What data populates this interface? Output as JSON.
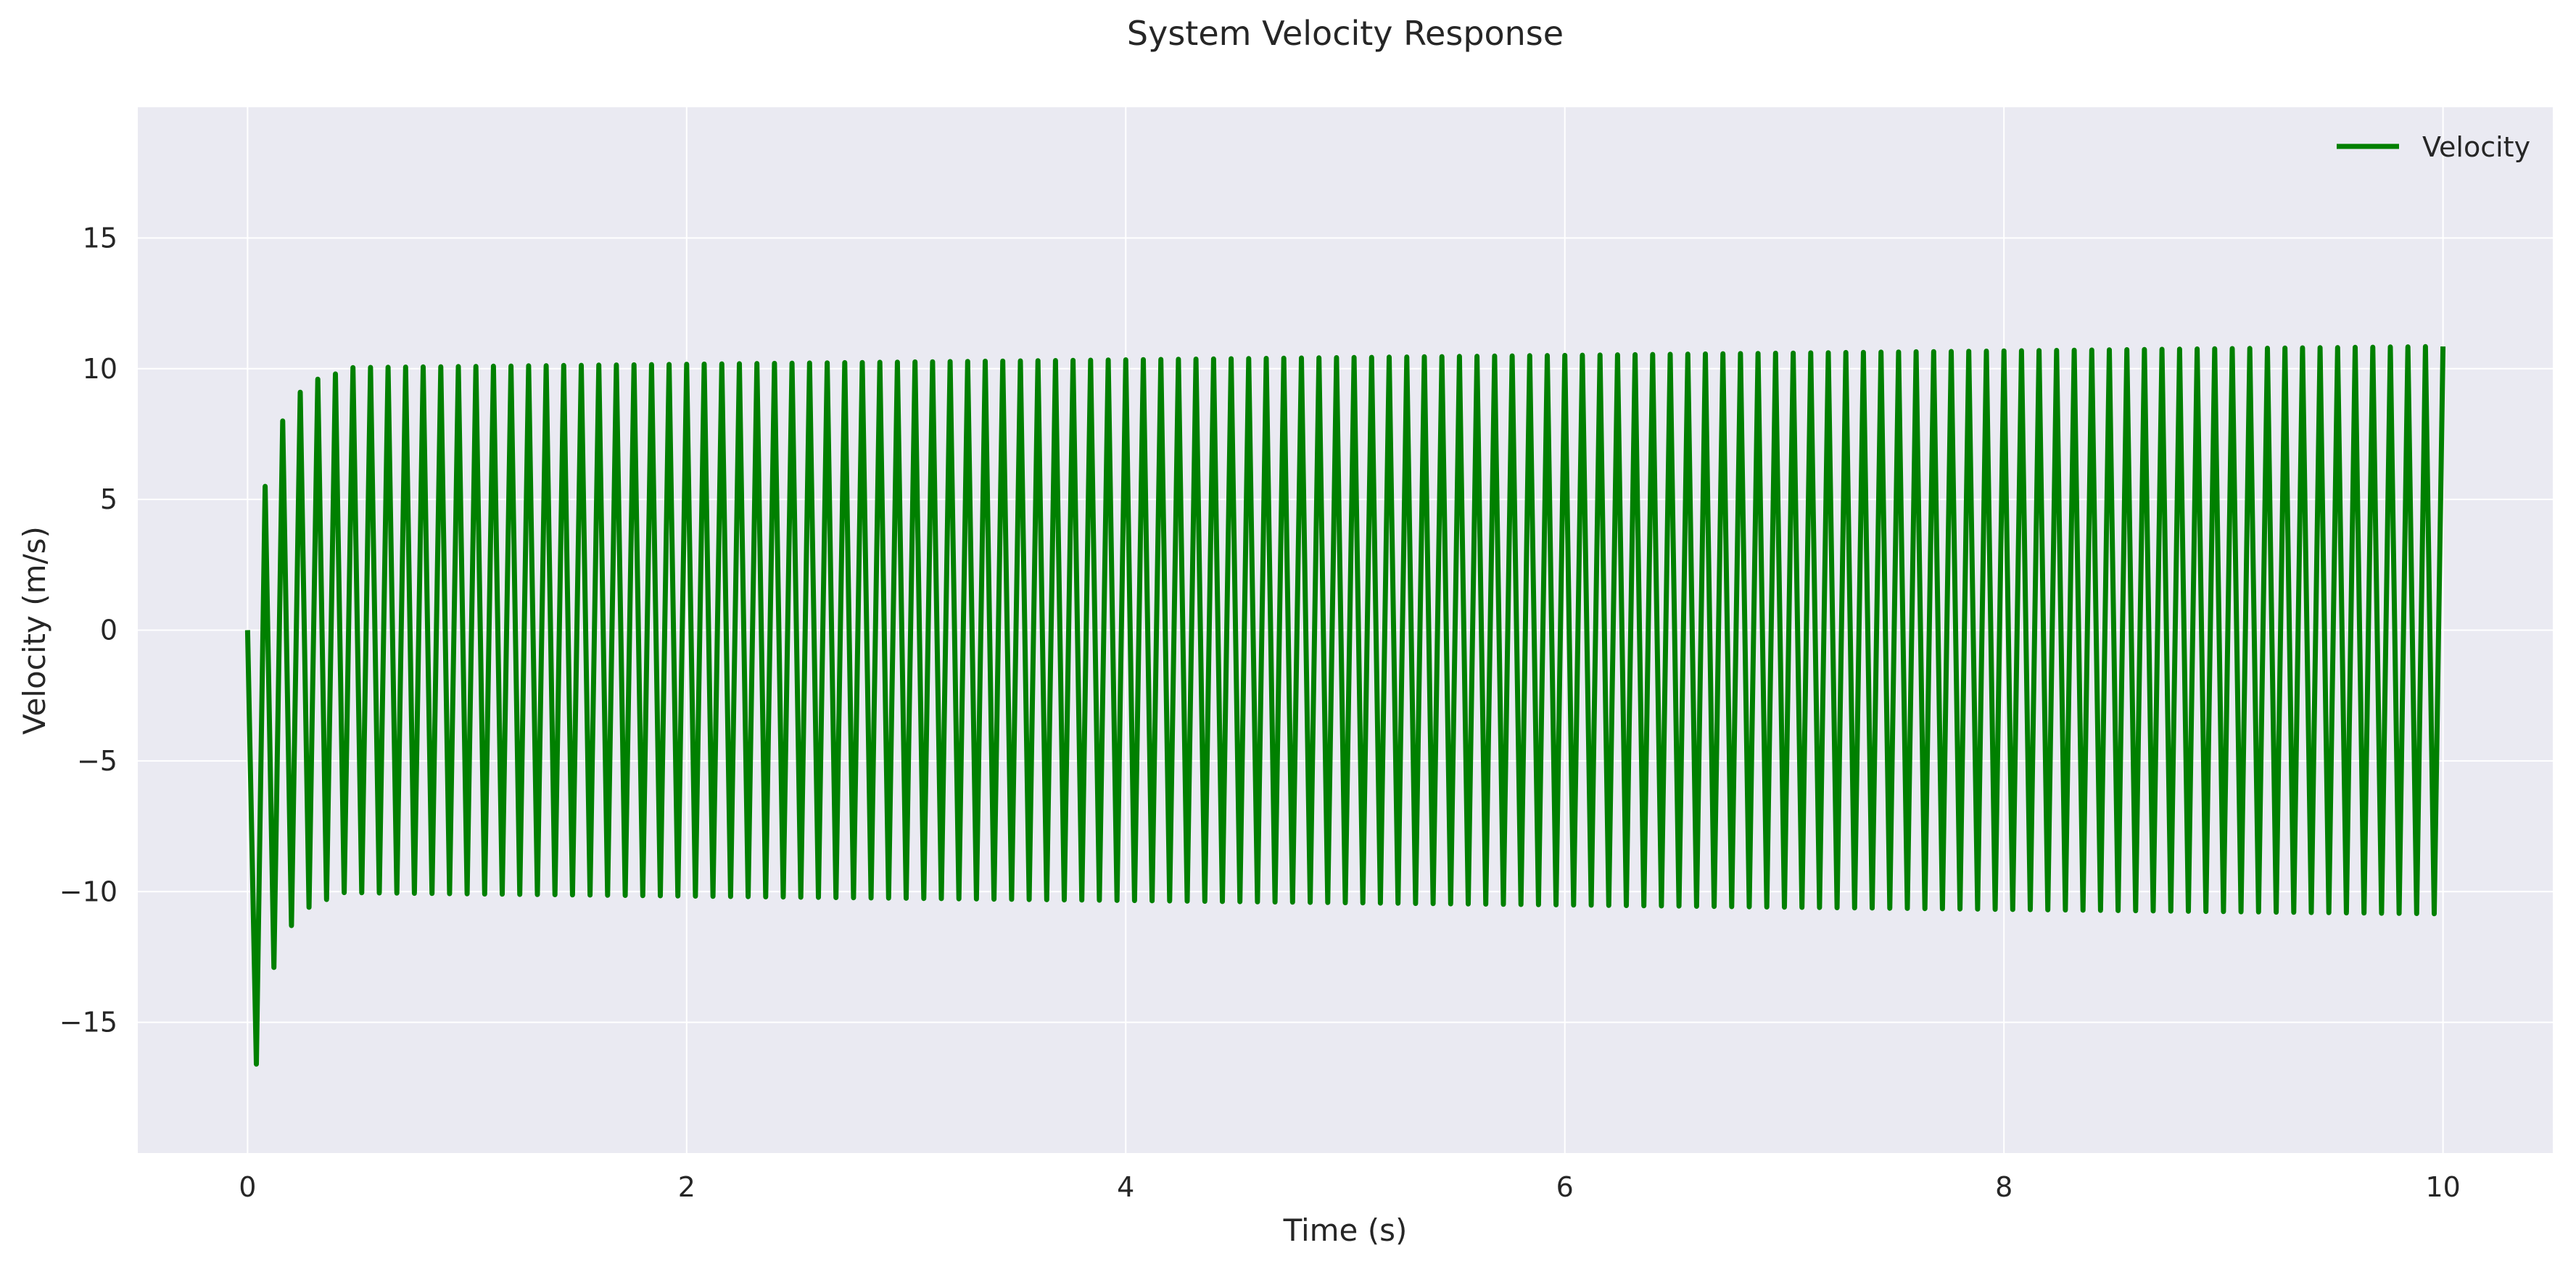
{
  "chart_data": {
    "type": "line",
    "title": "System Velocity Response",
    "xlabel": "Time (s)",
    "ylabel": "Velocity (m/s)",
    "xlim": [
      -0.5,
      10.5
    ],
    "ylim": [
      -20,
      20
    ],
    "xticks": [
      0,
      2,
      4,
      6,
      8,
      10
    ],
    "xtick_labels": [
      "0",
      "2",
      "4",
      "6",
      "8",
      "10"
    ],
    "yticks": [
      -15,
      -10,
      -5,
      0,
      5,
      10,
      15
    ],
    "ytick_labels": [
      "−15",
      "−10",
      "−5",
      "0",
      "5",
      "10",
      "15"
    ],
    "grid": true,
    "legend_position": "top-right",
    "background": "#eaeaf2",
    "series": [
      {
        "name": "Velocity",
        "color": "#008000",
        "description": "Oscillation at ~12.5 Hz; first trough about -16.6 near t=0.04, amplitude settles near 10 and grows slowly to about 10.8 at t=10",
        "sampled_extrema": {
          "t": [
            0,
            0.04,
            0.08,
            0.12,
            0.16,
            0.2,
            0.24,
            0.28,
            0.32,
            0.36,
            0.4,
            1.0,
            2.0,
            4.0,
            6.0,
            8.0,
            9.96,
            10.0
          ],
          "v": [
            0,
            -16.6,
            5.5,
            -12.9,
            8.0,
            -11.3,
            9.1,
            -10.6,
            9.6,
            -10.3,
            9.8,
            10.1,
            10.2,
            10.4,
            10.6,
            10.7,
            -10.8,
            10.85
          ]
        }
      }
    ]
  }
}
